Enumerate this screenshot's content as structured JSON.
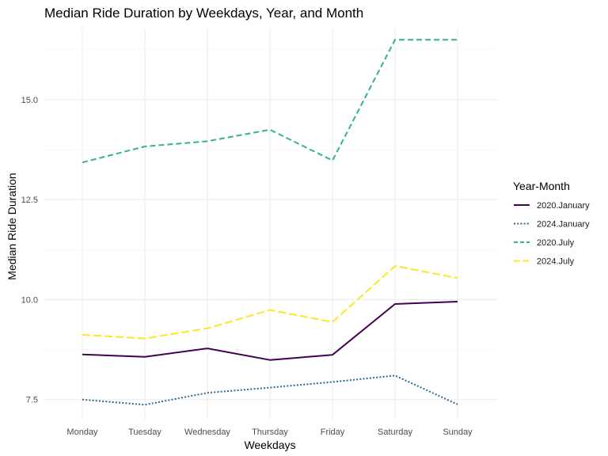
{
  "chart_data": {
    "type": "line",
    "title": "Median Ride Duration by Weekdays, Year, and Month",
    "xlabel": "Weekdays",
    "ylabel": "Median Ride Duration",
    "categories": [
      "Monday",
      "Tuesday",
      "Wednesday",
      "Thursday",
      "Friday",
      "Saturday",
      "Sunday"
    ],
    "ylim": [
      7.0,
      16.8
    ],
    "yticks": [
      7.5,
      10.0,
      12.5,
      15.0
    ],
    "ytick_labels": [
      "7.5",
      "10.0",
      "12.5",
      "15.0"
    ],
    "grid": true,
    "legend": {
      "title": "Year-Month",
      "position": "right"
    },
    "series": [
      {
        "name": "2020.January",
        "values": [
          8.63,
          8.57,
          8.78,
          8.49,
          8.62,
          9.89,
          9.95
        ],
        "color": "#440154",
        "style": "solid"
      },
      {
        "name": "2024.January",
        "values": [
          7.5,
          7.37,
          7.67,
          7.8,
          7.94,
          8.1,
          7.38
        ],
        "color": "#31688E",
        "style": "dotted"
      },
      {
        "name": "2020.July",
        "values": [
          13.43,
          13.83,
          13.96,
          14.25,
          13.48,
          16.5,
          16.5
        ],
        "color": "#35B779",
        "style": "dashed"
      },
      {
        "name": "2024.July",
        "values": [
          9.12,
          9.03,
          9.28,
          9.74,
          9.44,
          10.84,
          10.54
        ],
        "color": "#FDE725",
        "style": "longdash"
      }
    ]
  }
}
